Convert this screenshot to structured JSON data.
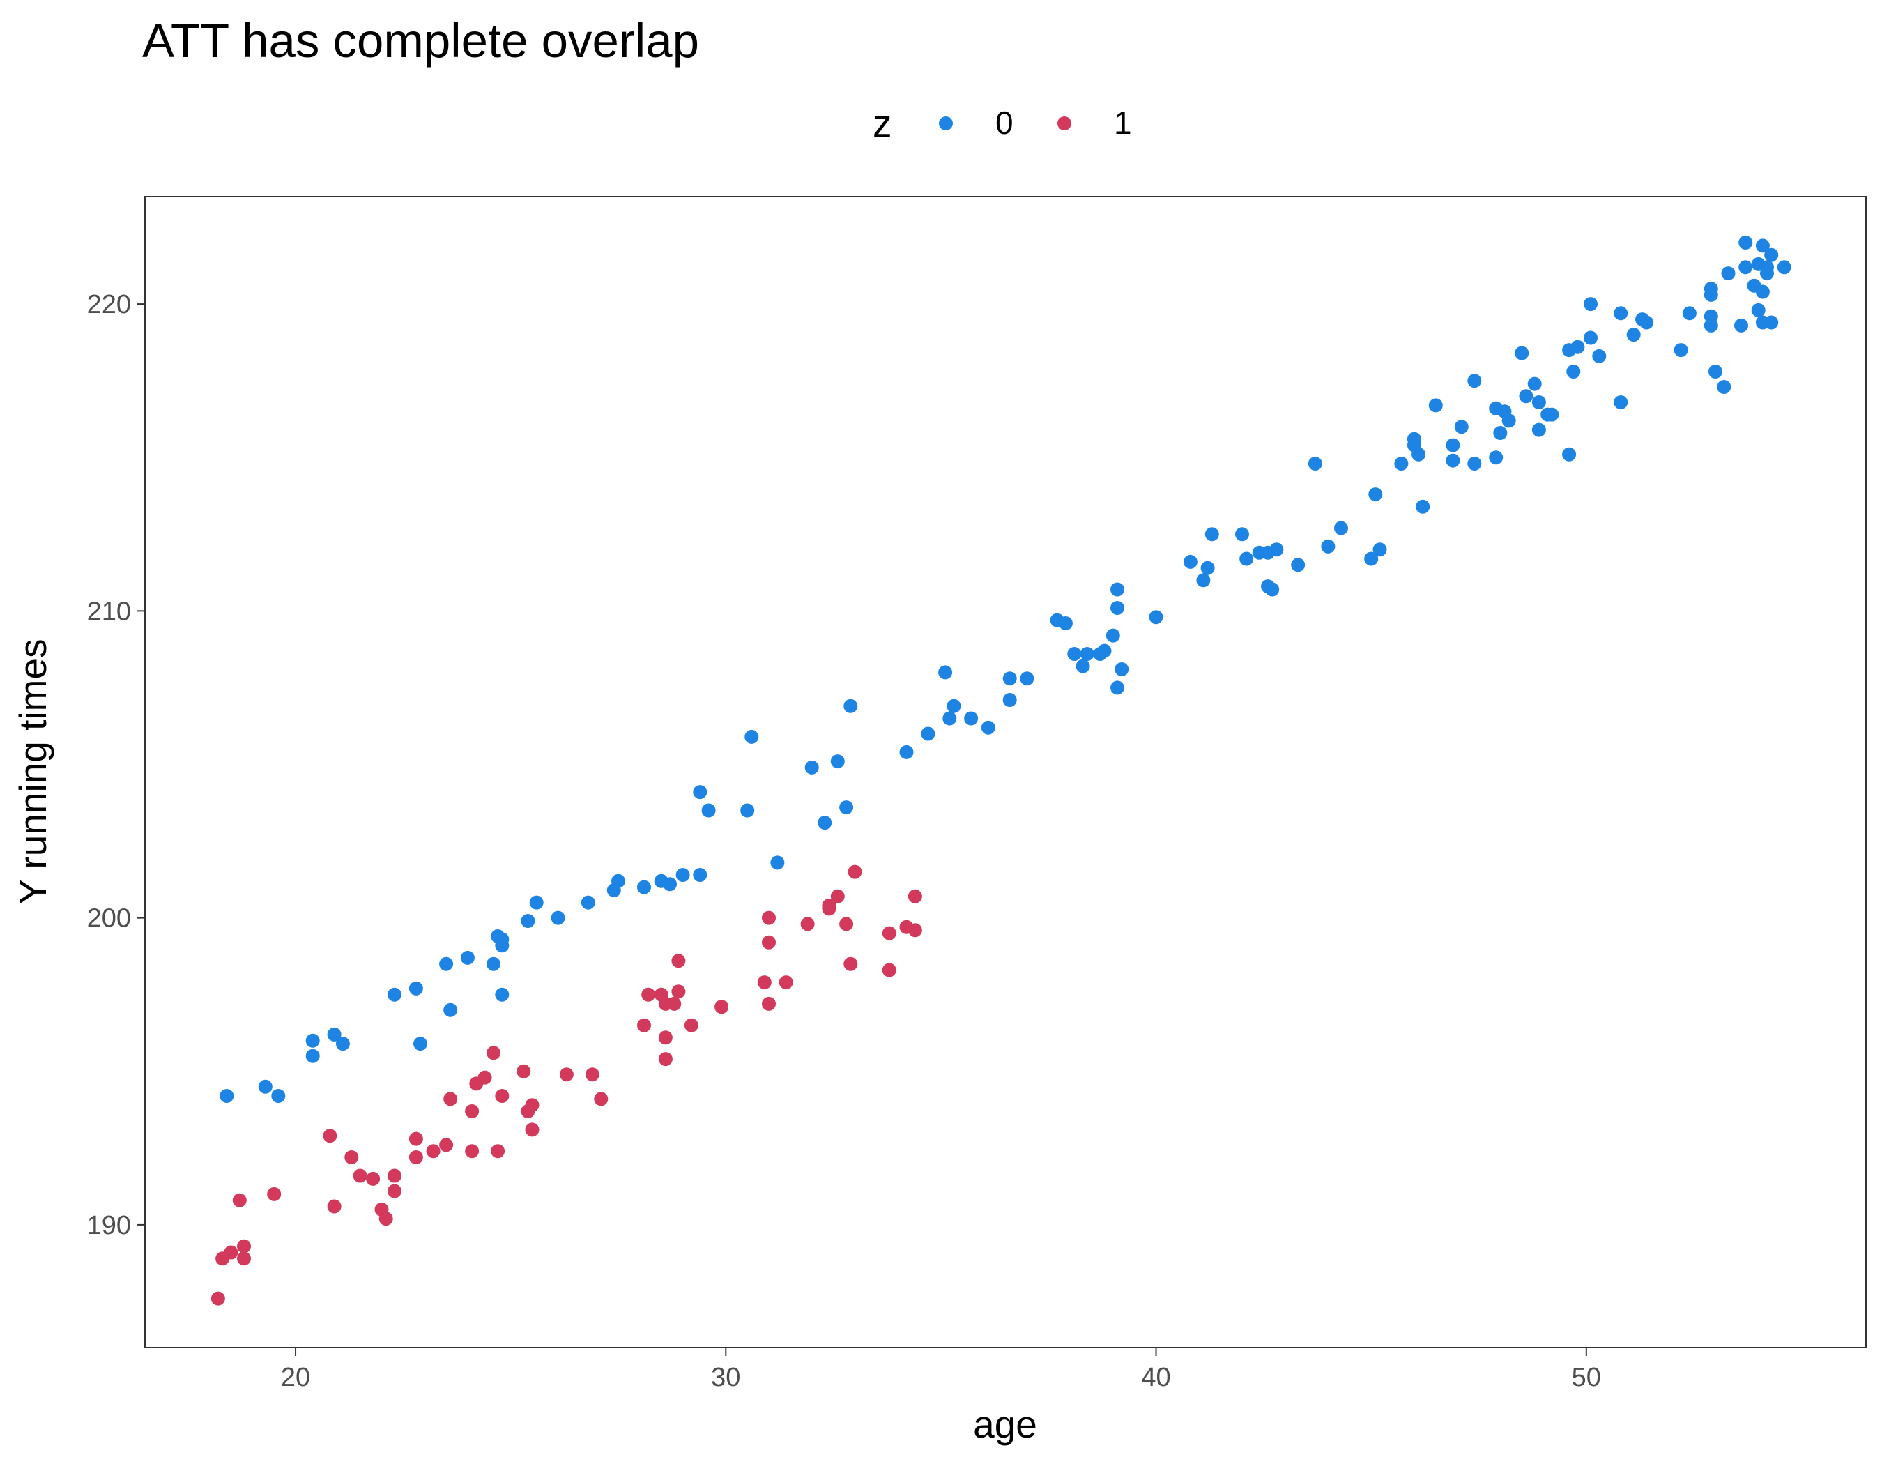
{
  "chart_data": {
    "type": "scatter",
    "title": "ATT has complete overlap",
    "xlabel": "age",
    "ylabel": "Y running times",
    "xlim": [
      16.5,
      56.5
    ],
    "ylim": [
      186.0,
      223.5
    ],
    "xticks": [
      20,
      30,
      40,
      50
    ],
    "yticks": [
      190,
      200,
      210,
      220
    ],
    "grid": false,
    "legend": {
      "title": "z",
      "placement": "top"
    },
    "colors": {
      "z0": "#1e84e4",
      "z1": "#d2395a",
      "frame": "#333333",
      "tick_text": "#4d4d4d"
    },
    "series": [
      {
        "name": "0",
        "color": "#1e84e4",
        "points": [
          [
            18.4,
            194.2
          ],
          [
            19.3,
            194.5
          ],
          [
            19.6,
            194.2
          ],
          [
            20.4,
            196.0
          ],
          [
            20.4,
            195.5
          ],
          [
            20.9,
            196.2
          ],
          [
            21.1,
            195.9
          ],
          [
            22.3,
            197.5
          ],
          [
            22.8,
            197.7
          ],
          [
            22.9,
            195.9
          ],
          [
            23.5,
            198.5
          ],
          [
            23.6,
            197.0
          ],
          [
            24.0,
            198.7
          ],
          [
            24.6,
            198.5
          ],
          [
            24.7,
            199.4
          ],
          [
            24.8,
            199.3
          ],
          [
            24.8,
            199.1
          ],
          [
            24.8,
            197.5
          ],
          [
            25.4,
            199.9
          ],
          [
            25.6,
            200.5
          ],
          [
            26.1,
            200.0
          ],
          [
            26.8,
            200.5
          ],
          [
            27.4,
            200.9
          ],
          [
            27.5,
            201.2
          ],
          [
            28.1,
            201.0
          ],
          [
            28.5,
            201.2
          ],
          [
            28.7,
            201.1
          ],
          [
            29.0,
            201.4
          ],
          [
            29.4,
            201.4
          ],
          [
            29.4,
            204.1
          ],
          [
            29.6,
            203.5
          ],
          [
            30.5,
            203.5
          ],
          [
            30.6,
            205.9
          ],
          [
            31.2,
            201.8
          ],
          [
            32.0,
            204.9
          ],
          [
            32.3,
            203.1
          ],
          [
            32.6,
            205.1
          ],
          [
            32.8,
            203.6
          ],
          [
            32.9,
            206.9
          ],
          [
            34.2,
            205.4
          ],
          [
            34.7,
            206.0
          ],
          [
            35.1,
            208.0
          ],
          [
            35.2,
            206.5
          ],
          [
            35.3,
            206.9
          ],
          [
            35.7,
            206.5
          ],
          [
            36.1,
            206.2
          ],
          [
            36.6,
            207.1
          ],
          [
            36.6,
            207.8
          ],
          [
            37.0,
            207.8
          ],
          [
            37.7,
            209.7
          ],
          [
            37.9,
            209.6
          ],
          [
            38.1,
            208.6
          ],
          [
            38.3,
            208.2
          ],
          [
            38.4,
            208.6
          ],
          [
            38.7,
            208.6
          ],
          [
            38.8,
            208.7
          ],
          [
            39.0,
            209.2
          ],
          [
            39.1,
            210.1
          ],
          [
            39.1,
            210.7
          ],
          [
            39.2,
            208.1
          ],
          [
            39.1,
            207.5
          ],
          [
            40.0,
            209.8
          ],
          [
            40.8,
            211.6
          ],
          [
            41.1,
            211.0
          ],
          [
            41.2,
            211.4
          ],
          [
            41.3,
            212.5
          ],
          [
            42.0,
            212.5
          ],
          [
            42.1,
            211.7
          ],
          [
            42.4,
            211.9
          ],
          [
            42.6,
            211.9
          ],
          [
            42.6,
            210.8
          ],
          [
            42.7,
            210.7
          ],
          [
            42.8,
            212.0
          ],
          [
            43.3,
            211.5
          ],
          [
            43.7,
            214.8
          ],
          [
            44.0,
            212.1
          ],
          [
            44.3,
            212.7
          ],
          [
            45.0,
            211.7
          ],
          [
            45.1,
            213.8
          ],
          [
            45.2,
            212.0
          ],
          [
            45.7,
            214.8
          ],
          [
            46.0,
            215.4
          ],
          [
            46.0,
            215.6
          ],
          [
            46.1,
            215.1
          ],
          [
            46.2,
            213.4
          ],
          [
            46.5,
            216.7
          ],
          [
            46.9,
            215.4
          ],
          [
            46.9,
            214.9
          ],
          [
            47.1,
            216.0
          ],
          [
            47.4,
            214.8
          ],
          [
            47.4,
            217.5
          ],
          [
            47.9,
            215.0
          ],
          [
            47.9,
            216.6
          ],
          [
            48.0,
            215.8
          ],
          [
            48.1,
            216.5
          ],
          [
            48.2,
            216.2
          ],
          [
            48.5,
            218.4
          ],
          [
            48.6,
            217.0
          ],
          [
            48.8,
            217.4
          ],
          [
            48.9,
            216.8
          ],
          [
            48.9,
            215.9
          ],
          [
            49.1,
            216.4
          ],
          [
            49.2,
            216.4
          ],
          [
            49.6,
            215.1
          ],
          [
            49.6,
            218.5
          ],
          [
            49.7,
            217.8
          ],
          [
            49.8,
            218.6
          ],
          [
            50.1,
            220.0
          ],
          [
            50.1,
            218.9
          ],
          [
            50.3,
            218.3
          ],
          [
            50.8,
            219.7
          ],
          [
            50.8,
            216.8
          ],
          [
            51.1,
            219.0
          ],
          [
            51.3,
            219.5
          ],
          [
            51.4,
            219.4
          ],
          [
            52.2,
            218.5
          ],
          [
            52.4,
            219.7
          ],
          [
            52.9,
            219.3
          ],
          [
            52.9,
            219.6
          ],
          [
            52.9,
            220.3
          ],
          [
            52.9,
            220.5
          ],
          [
            53.0,
            217.8
          ],
          [
            53.2,
            217.3
          ],
          [
            53.3,
            221.0
          ],
          [
            53.6,
            219.3
          ],
          [
            53.7,
            222.0
          ],
          [
            53.7,
            221.2
          ],
          [
            53.9,
            220.6
          ],
          [
            54.0,
            219.8
          ],
          [
            54.0,
            221.3
          ],
          [
            54.1,
            220.4
          ],
          [
            54.1,
            219.4
          ],
          [
            54.1,
            221.9
          ],
          [
            54.2,
            221.2
          ],
          [
            54.2,
            221.0
          ],
          [
            54.3,
            221.6
          ],
          [
            54.3,
            219.4
          ],
          [
            54.6,
            221.2
          ]
        ]
      },
      {
        "name": "1",
        "color": "#d2395a",
        "points": [
          [
            18.2,
            187.6
          ],
          [
            18.3,
            188.9
          ],
          [
            18.5,
            189.1
          ],
          [
            18.8,
            188.9
          ],
          [
            18.8,
            189.3
          ],
          [
            18.7,
            190.8
          ],
          [
            19.5,
            191.0
          ],
          [
            20.8,
            192.9
          ],
          [
            20.9,
            190.6
          ],
          [
            21.3,
            192.2
          ],
          [
            21.5,
            191.6
          ],
          [
            21.8,
            191.5
          ],
          [
            22.0,
            190.5
          ],
          [
            22.1,
            190.2
          ],
          [
            22.3,
            191.6
          ],
          [
            22.3,
            191.1
          ],
          [
            22.8,
            192.8
          ],
          [
            22.8,
            192.2
          ],
          [
            23.2,
            192.4
          ],
          [
            23.5,
            192.6
          ],
          [
            23.6,
            194.1
          ],
          [
            24.1,
            193.7
          ],
          [
            24.1,
            192.4
          ],
          [
            24.2,
            194.6
          ],
          [
            24.4,
            194.8
          ],
          [
            24.6,
            195.6
          ],
          [
            24.7,
            192.4
          ],
          [
            24.8,
            194.2
          ],
          [
            25.3,
            195.0
          ],
          [
            25.4,
            193.7
          ],
          [
            25.5,
            193.9
          ],
          [
            25.5,
            193.1
          ],
          [
            26.3,
            194.9
          ],
          [
            26.9,
            194.9
          ],
          [
            27.1,
            194.1
          ],
          [
            28.1,
            196.5
          ],
          [
            28.2,
            197.5
          ],
          [
            28.5,
            197.5
          ],
          [
            28.6,
            197.2
          ],
          [
            28.6,
            196.1
          ],
          [
            28.6,
            195.4
          ],
          [
            28.8,
            197.2
          ],
          [
            28.9,
            197.6
          ],
          [
            28.9,
            198.6
          ],
          [
            29.2,
            196.5
          ],
          [
            29.9,
            197.1
          ],
          [
            30.9,
            197.9
          ],
          [
            31.0,
            199.2
          ],
          [
            31.0,
            200.0
          ],
          [
            31.0,
            197.2
          ],
          [
            31.4,
            197.9
          ],
          [
            31.9,
            199.8
          ],
          [
            32.4,
            200.4
          ],
          [
            32.4,
            200.3
          ],
          [
            32.6,
            200.7
          ],
          [
            32.8,
            199.8
          ],
          [
            32.9,
            198.5
          ],
          [
            33.0,
            201.5
          ],
          [
            33.8,
            198.3
          ],
          [
            33.8,
            199.5
          ],
          [
            34.2,
            199.7
          ],
          [
            34.4,
            199.6
          ],
          [
            34.4,
            200.7
          ]
        ]
      }
    ]
  },
  "legend_items": [
    "0",
    "1"
  ]
}
